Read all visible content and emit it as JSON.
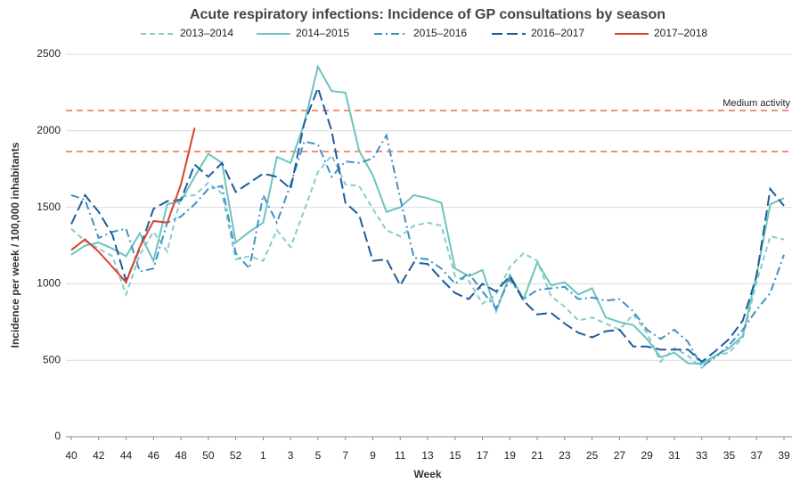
{
  "chart_data": {
    "type": "line",
    "title": "Acute respiratory infections: Incidence of GP consultations by season",
    "x_label": "Week",
    "y_label": "Incidence per week / 100,000 inhabitants",
    "categories": [
      "40",
      null,
      "42",
      null,
      "44",
      null,
      "46",
      null,
      "48",
      null,
      "50",
      null,
      "52",
      null,
      "1",
      null,
      "3",
      null,
      "5",
      null,
      "7",
      null,
      "9",
      null,
      "11",
      null,
      "13",
      null,
      "15",
      null,
      "17",
      null,
      "19",
      null,
      "21",
      null,
      "23",
      null,
      "25",
      null,
      "27",
      null,
      "29",
      null,
      "31",
      null,
      "33",
      null,
      "35",
      null,
      "37",
      null,
      "39"
    ],
    "ylim": [
      0,
      2500
    ],
    "yticks": [
      0,
      500,
      1000,
      1500,
      2000,
      2500
    ],
    "grid": true,
    "reference_lines": [
      {
        "value": 2133,
        "label": "Medium activity"
      },
      {
        "value": 1865
      }
    ],
    "reference_color": "#f0907a",
    "series": [
      {
        "name": "2013–2014",
        "color": "#86cccb",
        "style": "dashed",
        "values": [
          1360,
          1280,
          1230,
          1180,
          930,
          1190,
          1340,
          1210,
          1570,
          1580,
          1660,
          1590,
          1160,
          1180,
          1150,
          1350,
          1240,
          1480,
          1730,
          1840,
          1650,
          1640,
          1490,
          1350,
          1310,
          1380,
          1400,
          1380,
          1050,
          1020,
          870,
          930,
          1110,
          1200,
          1150,
          920,
          850,
          760,
          780,
          740,
          700,
          800,
          680,
          490,
          580,
          530,
          450,
          530,
          550,
          650,
          1010,
          1310,
          1290
        ]
      },
      {
        "name": "2014–2015",
        "color": "#6cc4bd",
        "style": "solid",
        "values": [
          1190,
          1250,
          1270,
          1230,
          1180,
          1330,
          1150,
          1520,
          1540,
          1700,
          1850,
          1790,
          1270,
          1340,
          1400,
          1830,
          1790,
          2050,
          2420,
          2260,
          2250,
          1870,
          1710,
          1470,
          1500,
          1580,
          1560,
          1530,
          1100,
          1050,
          1090,
          820,
          1060,
          900,
          1140,
          990,
          1010,
          930,
          970,
          780,
          750,
          730,
          640,
          520,
          550,
          480,
          480,
          530,
          580,
          660,
          1060,
          1520,
          1560
        ]
      },
      {
        "name": "2015–2016",
        "color": "#3d92c6",
        "style": "dashdot",
        "values": [
          1580,
          1550,
          1300,
          1340,
          1360,
          1080,
          1100,
          1400,
          1440,
          1520,
          1620,
          1640,
          1200,
          1100,
          1580,
          1400,
          1650,
          1930,
          1910,
          1700,
          1800,
          1790,
          1820,
          1970,
          1560,
          1170,
          1160,
          1100,
          1000,
          1070,
          950,
          840,
          1030,
          900,
          960,
          970,
          980,
          900,
          910,
          890,
          900,
          820,
          700,
          640,
          700,
          620,
          460,
          520,
          600,
          700,
          830,
          940,
          1190
        ]
      },
      {
        "name": "2016–2017",
        "color": "#1d5c9c",
        "style": "longdash",
        "values": [
          1390,
          1580,
          1470,
          1320,
          1020,
          1230,
          1490,
          1540,
          1550,
          1780,
          1700,
          1790,
          1600,
          1660,
          1720,
          1700,
          1620,
          2050,
          2280,
          2000,
          1530,
          1450,
          1150,
          1160,
          990,
          1140,
          1130,
          1030,
          940,
          900,
          1000,
          950,
          1050,
          890,
          800,
          810,
          740,
          680,
          650,
          690,
          700,
          590,
          590,
          570,
          570,
          570,
          490,
          560,
          640,
          760,
          1050,
          1620,
          1510
        ]
      },
      {
        "name": "2017–2018",
        "color": "#d9432e",
        "style": "solid",
        "values": [
          1220,
          1290,
          1210,
          1110,
          1010,
          1240,
          1410,
          1400,
          1650,
          2020,
          null,
          null,
          null,
          null,
          null,
          null,
          null,
          null,
          null,
          null,
          null,
          null,
          null,
          null,
          null,
          null,
          null,
          null,
          null,
          null,
          null,
          null,
          null,
          null,
          null,
          null,
          null,
          null,
          null,
          null,
          null,
          null,
          null,
          null,
          null,
          null,
          null,
          null,
          null,
          null,
          null,
          null,
          null
        ]
      }
    ]
  }
}
